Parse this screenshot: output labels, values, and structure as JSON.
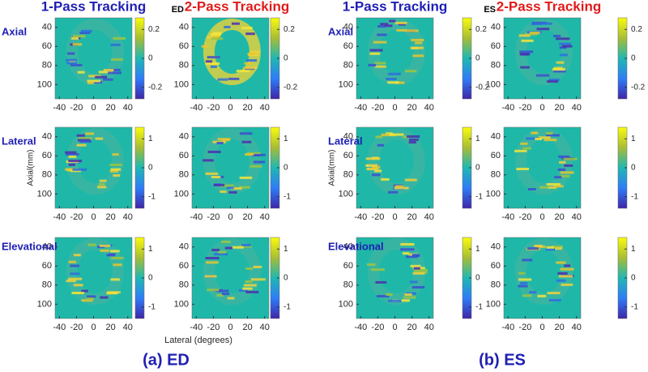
{
  "groups": [
    {
      "caption": "(a) ED",
      "tag": "ED",
      "columns": [
        {
          "title": "1-Pass Tracking"
        },
        {
          "title": "2-Pass Tracking"
        }
      ]
    },
    {
      "caption": "(b) ES",
      "tag": "ES",
      "columns": [
        {
          "title": "1-Pass Tracking"
        },
        {
          "title": "2-Pass Tracking"
        }
      ]
    }
  ],
  "rows": [
    {
      "label": "Axial",
      "colorbar_ticks": [
        0.2,
        0,
        -0.2
      ]
    },
    {
      "label": "Lateral",
      "colorbar_ticks": [
        1,
        0,
        -1
      ]
    },
    {
      "label": "Elevational",
      "colorbar_ticks": [
        1,
        0,
        -1
      ]
    }
  ],
  "y_ticks": [
    40,
    60,
    80,
    100
  ],
  "x_ticks": [
    -40,
    -20,
    0,
    20,
    40
  ],
  "y_axis_label": "Axial(mm)",
  "x_axis_label": "Lateral (degrees)"
}
